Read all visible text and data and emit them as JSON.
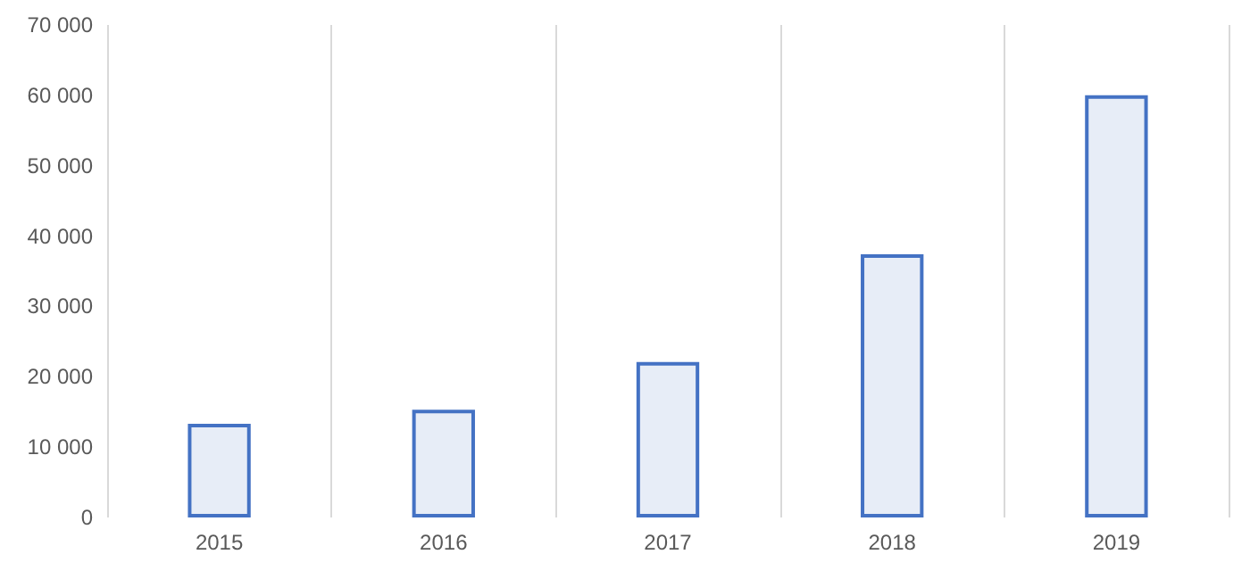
{
  "chart_data": {
    "type": "bar",
    "categories": [
      "2015",
      "2016",
      "2017",
      "2018",
      "2019"
    ],
    "values": [
      13300,
      15300,
      22100,
      37400,
      60000
    ],
    "color": "#4472c4",
    "ylim": [
      0,
      70000
    ],
    "yticks": [
      0,
      10000,
      20000,
      30000,
      40000,
      50000,
      60000,
      70000
    ],
    "grid": "x"
  }
}
